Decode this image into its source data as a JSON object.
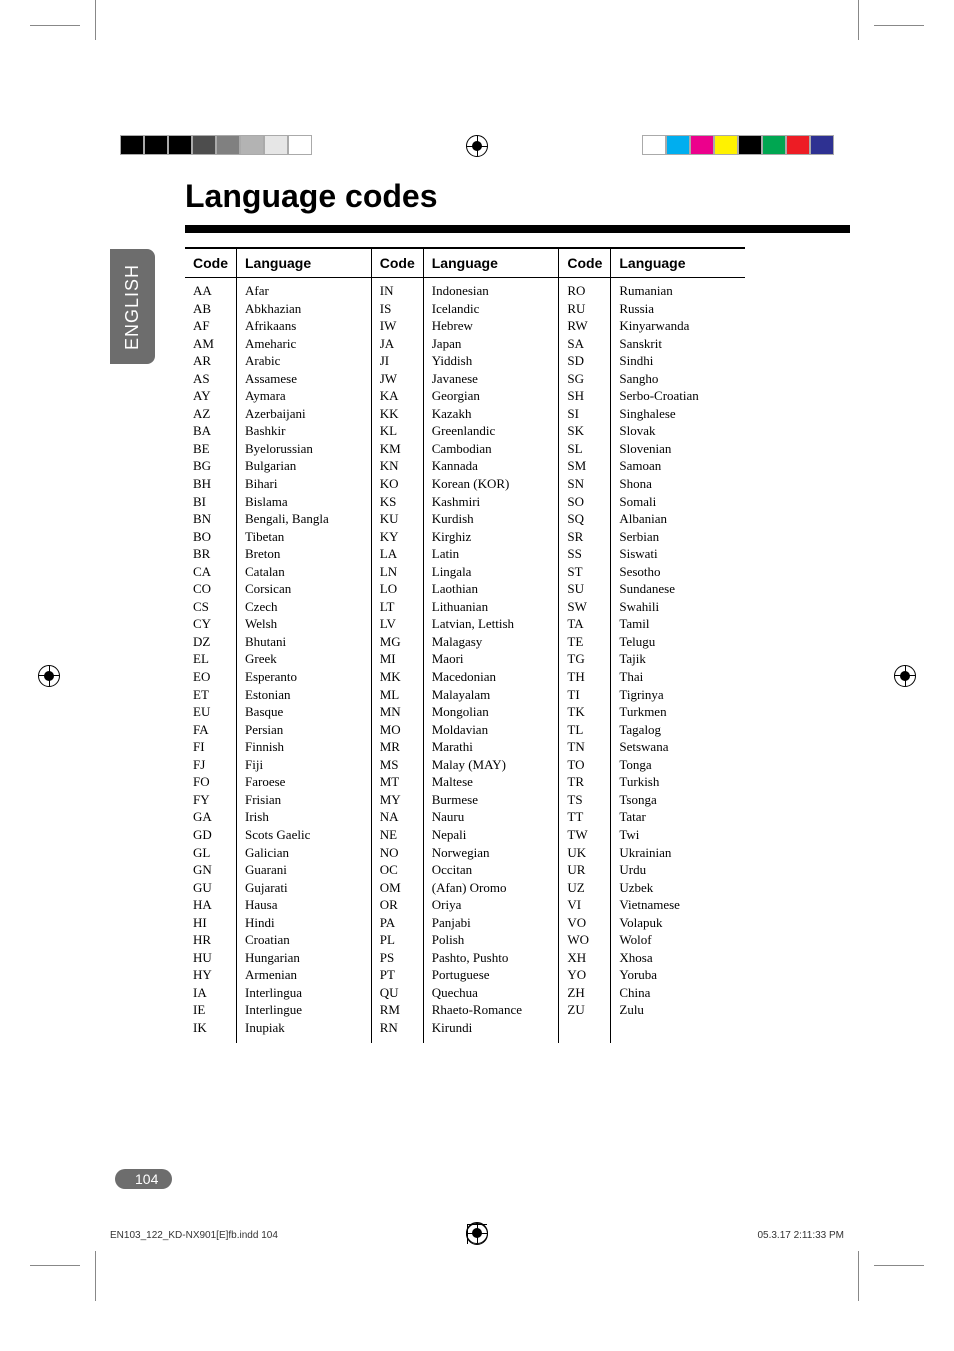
{
  "title": "Language codes",
  "side_tab": "ENGLISH",
  "page_number": "104",
  "footer_left": "EN103_122_KD-NX901[E]fb.indd   104",
  "footer_right": "05.3.17   2:11:33 PM",
  "headers": {
    "code": "Code",
    "language": "Language"
  },
  "columns": [
    [
      {
        "c": "AA",
        "l": "Afar"
      },
      {
        "c": "AB",
        "l": "Abkhazian"
      },
      {
        "c": "AF",
        "l": "Afrikaans"
      },
      {
        "c": "AM",
        "l": "Ameharic"
      },
      {
        "c": "AR",
        "l": "Arabic"
      },
      {
        "c": "AS",
        "l": "Assamese"
      },
      {
        "c": "AY",
        "l": "Aymara"
      },
      {
        "c": "AZ",
        "l": "Azerbaijani"
      },
      {
        "c": "BA",
        "l": "Bashkir"
      },
      {
        "c": "BE",
        "l": "Byelorussian"
      },
      {
        "c": "BG",
        "l": "Bulgarian"
      },
      {
        "c": "BH",
        "l": "Bihari"
      },
      {
        "c": "BI",
        "l": "Bislama"
      },
      {
        "c": "BN",
        "l": "Bengali, Bangla"
      },
      {
        "c": "BO",
        "l": "Tibetan"
      },
      {
        "c": "BR",
        "l": "Breton"
      },
      {
        "c": "CA",
        "l": "Catalan"
      },
      {
        "c": "CO",
        "l": "Corsican"
      },
      {
        "c": "CS",
        "l": "Czech"
      },
      {
        "c": "CY",
        "l": "Welsh"
      },
      {
        "c": "DZ",
        "l": "Bhutani"
      },
      {
        "c": "EL",
        "l": "Greek"
      },
      {
        "c": "EO",
        "l": "Esperanto"
      },
      {
        "c": "ET",
        "l": "Estonian"
      },
      {
        "c": "EU",
        "l": "Basque"
      },
      {
        "c": "FA",
        "l": "Persian"
      },
      {
        "c": "FI",
        "l": "Finnish"
      },
      {
        "c": "FJ",
        "l": "Fiji"
      },
      {
        "c": "FO",
        "l": "Faroese"
      },
      {
        "c": "FY",
        "l": "Frisian"
      },
      {
        "c": "GA",
        "l": "Irish"
      },
      {
        "c": "GD",
        "l": "Scots Gaelic"
      },
      {
        "c": "GL",
        "l": "Galician"
      },
      {
        "c": "GN",
        "l": "Guarani"
      },
      {
        "c": "GU",
        "l": "Gujarati"
      },
      {
        "c": "HA",
        "l": "Hausa"
      },
      {
        "c": "HI",
        "l": "Hindi"
      },
      {
        "c": "HR",
        "l": "Croatian"
      },
      {
        "c": "HU",
        "l": "Hungarian"
      },
      {
        "c": "HY",
        "l": "Armenian"
      },
      {
        "c": "IA",
        "l": "Interlingua"
      },
      {
        "c": "IE",
        "l": "Interlingue"
      },
      {
        "c": "IK",
        "l": "Inupiak"
      }
    ],
    [
      {
        "c": "IN",
        "l": "Indonesian"
      },
      {
        "c": "IS",
        "l": "Icelandic"
      },
      {
        "c": "IW",
        "l": "Hebrew"
      },
      {
        "c": "JA",
        "l": "Japan"
      },
      {
        "c": "JI",
        "l": "Yiddish"
      },
      {
        "c": "JW",
        "l": "Javanese"
      },
      {
        "c": "KA",
        "l": "Georgian"
      },
      {
        "c": "KK",
        "l": "Kazakh"
      },
      {
        "c": "KL",
        "l": "Greenlandic"
      },
      {
        "c": "KM",
        "l": "Cambodian"
      },
      {
        "c": "KN",
        "l": "Kannada"
      },
      {
        "c": "KO",
        "l": "Korean (KOR)"
      },
      {
        "c": "KS",
        "l": "Kashmiri"
      },
      {
        "c": "KU",
        "l": "Kurdish"
      },
      {
        "c": "KY",
        "l": "Kirghiz"
      },
      {
        "c": "LA",
        "l": "Latin"
      },
      {
        "c": "LN",
        "l": "Lingala"
      },
      {
        "c": "LO",
        "l": "Laothian"
      },
      {
        "c": "LT",
        "l": "Lithuanian"
      },
      {
        "c": "LV",
        "l": "Latvian, Lettish"
      },
      {
        "c": "MG",
        "l": "Malagasy"
      },
      {
        "c": "MI",
        "l": "Maori"
      },
      {
        "c": "MK",
        "l": "Macedonian"
      },
      {
        "c": "ML",
        "l": "Malayalam"
      },
      {
        "c": "MN",
        "l": "Mongolian"
      },
      {
        "c": "MO",
        "l": "Moldavian"
      },
      {
        "c": "MR",
        "l": "Marathi"
      },
      {
        "c": "MS",
        "l": "Malay (MAY)"
      },
      {
        "c": "MT",
        "l": "Maltese"
      },
      {
        "c": "MY",
        "l": "Burmese"
      },
      {
        "c": "NA",
        "l": "Nauru"
      },
      {
        "c": "NE",
        "l": "Nepali"
      },
      {
        "c": "NO",
        "l": "Norwegian"
      },
      {
        "c": "OC",
        "l": "Occitan"
      },
      {
        "c": "OM",
        "l": "(Afan) Oromo"
      },
      {
        "c": "OR",
        "l": "Oriya"
      },
      {
        "c": "PA",
        "l": "Panjabi"
      },
      {
        "c": "PL",
        "l": "Polish"
      },
      {
        "c": "PS",
        "l": "Pashto, Pushto"
      },
      {
        "c": "PT",
        "l": "Portuguese"
      },
      {
        "c": "QU",
        "l": "Quechua"
      },
      {
        "c": "RM",
        "l": "Rhaeto-Romance"
      },
      {
        "c": "RN",
        "l": "Kirundi"
      }
    ],
    [
      {
        "c": "RO",
        "l": "Rumanian"
      },
      {
        "c": "RU",
        "l": "Russia"
      },
      {
        "c": "RW",
        "l": "Kinyarwanda"
      },
      {
        "c": "SA",
        "l": "Sanskrit"
      },
      {
        "c": "SD",
        "l": "Sindhi"
      },
      {
        "c": "SG",
        "l": "Sangho"
      },
      {
        "c": "SH",
        "l": "Serbo-Croatian"
      },
      {
        "c": "SI",
        "l": "Singhalese"
      },
      {
        "c": "SK",
        "l": "Slovak"
      },
      {
        "c": "SL",
        "l": "Slovenian"
      },
      {
        "c": "SM",
        "l": "Samoan"
      },
      {
        "c": "SN",
        "l": "Shona"
      },
      {
        "c": "SO",
        "l": "Somali"
      },
      {
        "c": "SQ",
        "l": "Albanian"
      },
      {
        "c": "SR",
        "l": "Serbian"
      },
      {
        "c": "SS",
        "l": "Siswati"
      },
      {
        "c": "ST",
        "l": "Sesotho"
      },
      {
        "c": "SU",
        "l": "Sundanese"
      },
      {
        "c": "SW",
        "l": "Swahili"
      },
      {
        "c": "TA",
        "l": "Tamil"
      },
      {
        "c": "TE",
        "l": "Telugu"
      },
      {
        "c": "TG",
        "l": "Tajik"
      },
      {
        "c": "TH",
        "l": "Thai"
      },
      {
        "c": "TI",
        "l": "Tigrinya"
      },
      {
        "c": "TK",
        "l": "Turkmen"
      },
      {
        "c": "TL",
        "l": "Tagalog"
      },
      {
        "c": "TN",
        "l": "Setswana"
      },
      {
        "c": "TO",
        "l": "Tonga"
      },
      {
        "c": "TR",
        "l": "Turkish"
      },
      {
        "c": "TS",
        "l": "Tsonga"
      },
      {
        "c": "TT",
        "l": "Tatar"
      },
      {
        "c": "TW",
        "l": "Twi"
      },
      {
        "c": "UK",
        "l": "Ukrainian"
      },
      {
        "c": "UR",
        "l": "Urdu"
      },
      {
        "c": "UZ",
        "l": "Uzbek"
      },
      {
        "c": "VI",
        "l": "Vietnamese"
      },
      {
        "c": "VO",
        "l": "Volapuk"
      },
      {
        "c": "WO",
        "l": "Wolof"
      },
      {
        "c": "XH",
        "l": "Xhosa"
      },
      {
        "c": "YO",
        "l": "Yoruba"
      },
      {
        "c": "ZH",
        "l": "China"
      },
      {
        "c": "ZU",
        "l": "Zulu"
      }
    ]
  ],
  "color_bars": {
    "left": [
      "#000000",
      "#000000",
      "#000000",
      "#4d4d4d",
      "#808080",
      "#b3b3b3",
      "#e6e6e6",
      "#ffffff"
    ],
    "right": [
      "#ffffff",
      "#00aeef",
      "#ec008c",
      "#fff200",
      "#000000",
      "#00a651",
      "#ed1c24",
      "#2e3192"
    ]
  },
  "styles": {
    "title_fontsize": 32,
    "body_fontsize": 13,
    "tab_bg": "#6d6d6d",
    "page_bg": "#ffffff"
  }
}
